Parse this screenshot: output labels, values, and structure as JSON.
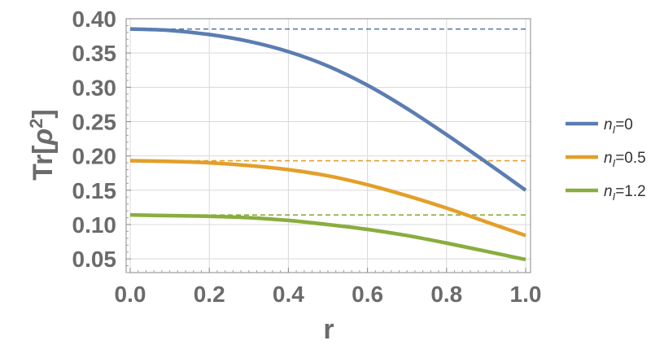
{
  "chart_data": {
    "type": "line",
    "xlabel": "r",
    "ylabel": "Tr[",
    "ylabel_symbol": "ρ",
    "ylabel_exp": "2",
    "ylabel_close": "]",
    "xlim": [
      0,
      1.0
    ],
    "ylim": [
      0.03,
      0.4
    ],
    "grid": true,
    "legend_position": "right",
    "x_ticks": [
      "0.0",
      "0.2",
      "0.4",
      "0.6",
      "0.8",
      "1.0"
    ],
    "y_ticks": [
      "0.05",
      "0.10",
      "0.15",
      "0.20",
      "0.25",
      "0.30",
      "0.35",
      "0.40"
    ],
    "series": [
      {
        "legend_sym": "n",
        "legend_sub": "I",
        "legend_value": "=0",
        "color": "#5b7db1",
        "asymptote": 0.385,
        "x": [
          0.0,
          0.1,
          0.2,
          0.3,
          0.4,
          0.5,
          0.6,
          0.7,
          0.8,
          0.9,
          1.0
        ],
        "y": [
          0.385,
          0.383,
          0.377,
          0.367,
          0.352,
          0.331,
          0.303,
          0.269,
          0.231,
          0.191,
          0.15
        ]
      },
      {
        "legend_sym": "n",
        "legend_sub": "I",
        "legend_value": "=0.5",
        "color": "#e39f2a",
        "asymptote": 0.193,
        "x": [
          0.0,
          0.1,
          0.2,
          0.3,
          0.4,
          0.5,
          0.6,
          0.7,
          0.8,
          0.9,
          1.0
        ],
        "y": [
          0.193,
          0.192,
          0.19,
          0.186,
          0.18,
          0.171,
          0.158,
          0.142,
          0.124,
          0.104,
          0.084
        ]
      },
      {
        "legend_sym": "n",
        "legend_sub": "I",
        "legend_value": "=1.2",
        "color": "#89ad3e",
        "asymptote": 0.114,
        "x": [
          0.0,
          0.1,
          0.2,
          0.3,
          0.4,
          0.5,
          0.6,
          0.7,
          0.8,
          0.9,
          1.0
        ],
        "y": [
          0.114,
          0.113,
          0.112,
          0.11,
          0.106,
          0.1,
          0.093,
          0.084,
          0.073,
          0.061,
          0.049
        ]
      }
    ]
  }
}
